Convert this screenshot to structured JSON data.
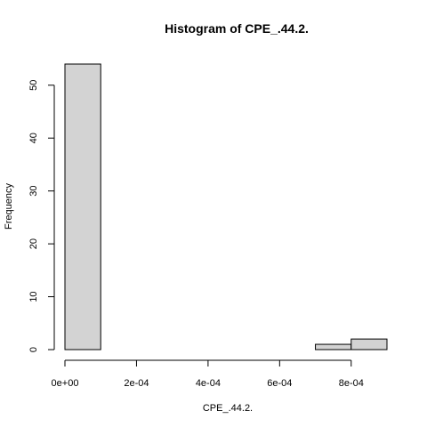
{
  "chart_data": {
    "type": "bar",
    "title": "Histogram of CPE_.44.2.",
    "xlabel": "CPE_.44.2.",
    "ylabel": "Frequency",
    "bins": [
      {
        "start": 0.0,
        "end": 0.0001,
        "count": 54
      },
      {
        "start": 0.0001,
        "end": 0.0002,
        "count": 0
      },
      {
        "start": 0.0002,
        "end": 0.0003,
        "count": 0
      },
      {
        "start": 0.0003,
        "end": 0.0004,
        "count": 0
      },
      {
        "start": 0.0004,
        "end": 0.0005,
        "count": 0
      },
      {
        "start": 0.0005,
        "end": 0.0006,
        "count": 0
      },
      {
        "start": 0.0006,
        "end": 0.0007,
        "count": 0
      },
      {
        "start": 0.0007,
        "end": 0.0008,
        "count": 1
      },
      {
        "start": 0.0008,
        "end": 0.0009,
        "count": 2
      }
    ],
    "xlim": [
      0,
      0.0009
    ],
    "ylim": [
      0,
      54
    ],
    "x_ticks": [
      {
        "value": 0.0,
        "label": "0e+00"
      },
      {
        "value": 0.0002,
        "label": "2e-04"
      },
      {
        "value": 0.0004,
        "label": "4e-04"
      },
      {
        "value": 0.0006,
        "label": "6e-04"
      },
      {
        "value": 0.0008,
        "label": "8e-04"
      }
    ],
    "y_ticks": [
      {
        "value": 0,
        "label": "0"
      },
      {
        "value": 10,
        "label": "10"
      },
      {
        "value": 20,
        "label": "20"
      },
      {
        "value": 30,
        "label": "30"
      },
      {
        "value": 40,
        "label": "40"
      },
      {
        "value": 50,
        "label": "50"
      }
    ],
    "colors": {
      "bar_fill": "#d3d3d3",
      "bar_stroke": "#000000"
    },
    "grid": false,
    "legend": "none"
  }
}
